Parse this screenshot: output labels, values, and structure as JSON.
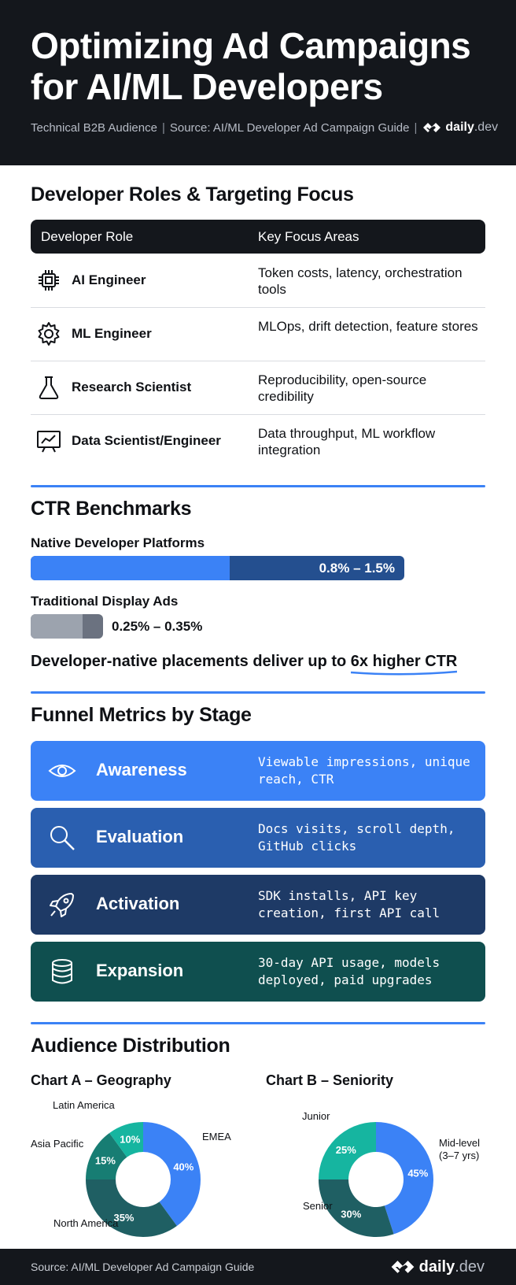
{
  "header": {
    "title": "Optimizing Ad Campaigns for AI/ML Developers",
    "subtitle_audience": "Technical B2B Audience",
    "subtitle_source": "Source: AI/ML Developer Ad Campaign Guide",
    "logo_name": "daily",
    "logo_suffix": ".dev"
  },
  "roles": {
    "title": "Developer Roles & Targeting Focus",
    "col_role": "Developer Role",
    "col_focus": "Key Focus Areas",
    "rows": [
      {
        "role": "AI Engineer",
        "focus": "Token costs, latency, orchestration tools",
        "icon": "chip-icon"
      },
      {
        "role": "ML Engineer",
        "focus": "MLOps, drift detection, feature stores",
        "icon": "gear-icon"
      },
      {
        "role": "Research Scientist",
        "focus": "Reproducibility, open-source credibility",
        "icon": "flask-icon"
      },
      {
        "role": "Data Scientist/Engineer",
        "focus": "Data throughput, ML workflow integration",
        "icon": "presentation-chart-icon"
      }
    ]
  },
  "ctr": {
    "title": "CTR Benchmarks",
    "native_label": "Native Developer Platforms",
    "native_range": "0.8% – 1.5%",
    "native_low": 0.8,
    "native_high": 1.5,
    "display_label": "Traditional Display Ads",
    "display_range": "0.25% – 0.35%",
    "display_low": 0.25,
    "display_high": 0.35,
    "callout_prefix": "Developer-native placements deliver up to ",
    "callout_highlight": "6x higher CTR"
  },
  "funnel": {
    "title": "Funnel Metrics by Stage",
    "stages": [
      {
        "stage": "Awareness",
        "metrics": "Viewable impressions, unique reach, CTR",
        "icon": "eye-icon",
        "color": "#3b82f6"
      },
      {
        "stage": "Evaluation",
        "metrics": "Docs visits, scroll depth, GitHub clicks",
        "icon": "search-icon",
        "color": "#2a5fb0"
      },
      {
        "stage": "Activation",
        "metrics": "SDK installs, API key creation, first API call",
        "icon": "rocket-icon",
        "color": "#1e3a66"
      },
      {
        "stage": "Expansion",
        "metrics": "30-day API usage, models deployed, paid upgrades",
        "icon": "database-icon",
        "color": "#0f4f4f"
      }
    ]
  },
  "audience": {
    "title": "Audience Distribution"
  },
  "chart_data": [
    {
      "type": "pie",
      "title": "Chart A – Geography",
      "categories": [
        "EMEA",
        "North America",
        "Asia Pacific",
        "Latin America"
      ],
      "values": [
        40,
        35,
        15,
        10
      ],
      "labels": [
        "40%",
        "35%",
        "15%",
        "10%"
      ],
      "colors": [
        "#3b82f6",
        "#1f5f63",
        "#177d73",
        "#16b5a0"
      ]
    },
    {
      "type": "pie",
      "title": "Chart B – Seniority",
      "categories": [
        "Mid-level (3–7 yrs)",
        "Senior",
        "Junior"
      ],
      "values": [
        45,
        30,
        25
      ],
      "labels": [
        "45%",
        "30%",
        "25%"
      ],
      "colors": [
        "#3b82f6",
        "#1f5f63",
        "#16b5a0"
      ]
    }
  ],
  "footer": {
    "source": "Source: AI/ML Developer Ad Campaign Guide",
    "logo_name": "daily",
    "logo_suffix": ".dev"
  }
}
